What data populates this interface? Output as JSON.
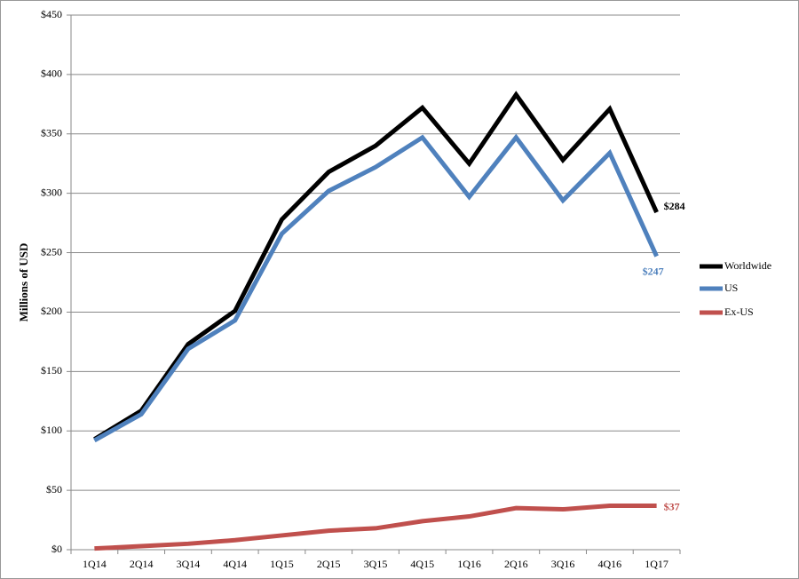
{
  "chart_data": {
    "type": "line",
    "y_label": "Millions of USD",
    "categories": [
      "1Q14",
      "2Q14",
      "3Q14",
      "4Q14",
      "1Q15",
      "2Q15",
      "3Q15",
      "4Q15",
      "1Q16",
      "2Q16",
      "3Q16",
      "4Q16",
      "1Q17"
    ],
    "series": [
      {
        "name": "Worldwide",
        "color": "#000000",
        "values": [
          93,
          117,
          173,
          201,
          278,
          318,
          340,
          372,
          325,
          383,
          328,
          371,
          284
        ],
        "value_labels": [
          null,
          null,
          null,
          null,
          null,
          null,
          null,
          null,
          null,
          null,
          null,
          null,
          "$284"
        ]
      },
      {
        "name": "US",
        "color": "#4f81bd",
        "values": [
          92,
          114,
          169,
          193,
          266,
          302,
          322,
          347,
          297,
          347,
          294,
          334,
          247
        ],
        "value_labels": [
          null,
          null,
          null,
          null,
          null,
          null,
          null,
          null,
          null,
          null,
          null,
          null,
          "$247"
        ]
      },
      {
        "name": "Ex-US",
        "color": "#c0504d",
        "values": [
          1,
          3,
          5,
          8,
          12,
          16,
          18,
          24,
          28,
          35,
          34,
          37,
          37
        ],
        "value_labels": [
          null,
          null,
          null,
          null,
          null,
          null,
          null,
          null,
          null,
          null,
          null,
          null,
          "$37"
        ]
      }
    ],
    "ylim": [
      0,
      450
    ],
    "yticks": [
      {
        "value": 0,
        "label": "$0"
      },
      {
        "value": 50,
        "label": "$50"
      },
      {
        "value": 100,
        "label": "$100"
      },
      {
        "value": 150,
        "label": "$150"
      },
      {
        "value": 200,
        "label": "$200"
      },
      {
        "value": 250,
        "label": "$250"
      },
      {
        "value": 300,
        "label": "$300"
      },
      {
        "value": 350,
        "label": "$350"
      },
      {
        "value": 400,
        "label": "$400"
      },
      {
        "value": 450,
        "label": "$450"
      }
    ],
    "grid": true,
    "legend": "right"
  }
}
